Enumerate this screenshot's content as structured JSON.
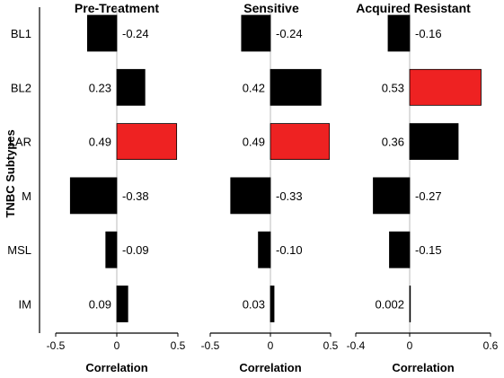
{
  "y_axis_label": "TNBC Subtypes",
  "chart_data": [
    {
      "type": "bar",
      "orientation": "horizontal",
      "title": "Pre-Treatment",
      "xlabel": "Correlation",
      "ylabel": "TNBC Subtypes",
      "categories": [
        "BL1",
        "BL2",
        "LAR",
        "M",
        "MSL",
        "IM"
      ],
      "values": [
        -0.24,
        0.23,
        0.49,
        -0.38,
        -0.09,
        0.09
      ],
      "labels": [
        "-0.24",
        "0.23",
        "0.49",
        "-0.38",
        "-0.09",
        "0.09"
      ],
      "highlight": [
        false,
        false,
        true,
        false,
        false,
        false
      ],
      "xlim": [
        -0.5,
        0.5
      ],
      "xticks": [
        -0.5,
        0,
        0.5
      ],
      "xtick_labels": [
        "-0.5",
        "0",
        "0.5"
      ]
    },
    {
      "type": "bar",
      "orientation": "horizontal",
      "title": "Sensitive",
      "xlabel": "Correlation",
      "categories": [
        "BL1",
        "BL2",
        "LAR",
        "M",
        "MSL",
        "IM"
      ],
      "values": [
        -0.24,
        0.42,
        0.49,
        -0.33,
        -0.1,
        0.03
      ],
      "labels": [
        "-0.24",
        "0.42",
        "0.49",
        "-0.33",
        "-0.10",
        "0.03"
      ],
      "highlight": [
        false,
        false,
        true,
        false,
        false,
        false
      ],
      "xlim": [
        -0.5,
        0.5
      ],
      "xticks": [
        -0.5,
        0,
        0.5
      ],
      "xtick_labels": [
        "-0.5",
        "0",
        "0.5"
      ]
    },
    {
      "type": "bar",
      "orientation": "horizontal",
      "title": "Acquired Resistant",
      "xlabel": "Correlation",
      "categories": [
        "BL1",
        "BL2",
        "LAR",
        "M",
        "MSL",
        "IM"
      ],
      "values": [
        -0.16,
        0.53,
        0.36,
        -0.27,
        -0.15,
        0.002
      ],
      "labels": [
        "-0.16",
        "0.53",
        "0.36",
        "-0.27",
        "-0.15",
        "0.002"
      ],
      "highlight": [
        false,
        true,
        false,
        false,
        false,
        false
      ],
      "xlim": [
        -0.4,
        0.6
      ],
      "xticks": [
        -0.4,
        0,
        0.6
      ],
      "xtick_labels": [
        "-0.4",
        "0",
        "0.6"
      ]
    }
  ],
  "colors": {
    "bar": "#000000",
    "highlight": "#ee2222",
    "zero_line": "#bbbbbb",
    "axis": "#000000"
  }
}
